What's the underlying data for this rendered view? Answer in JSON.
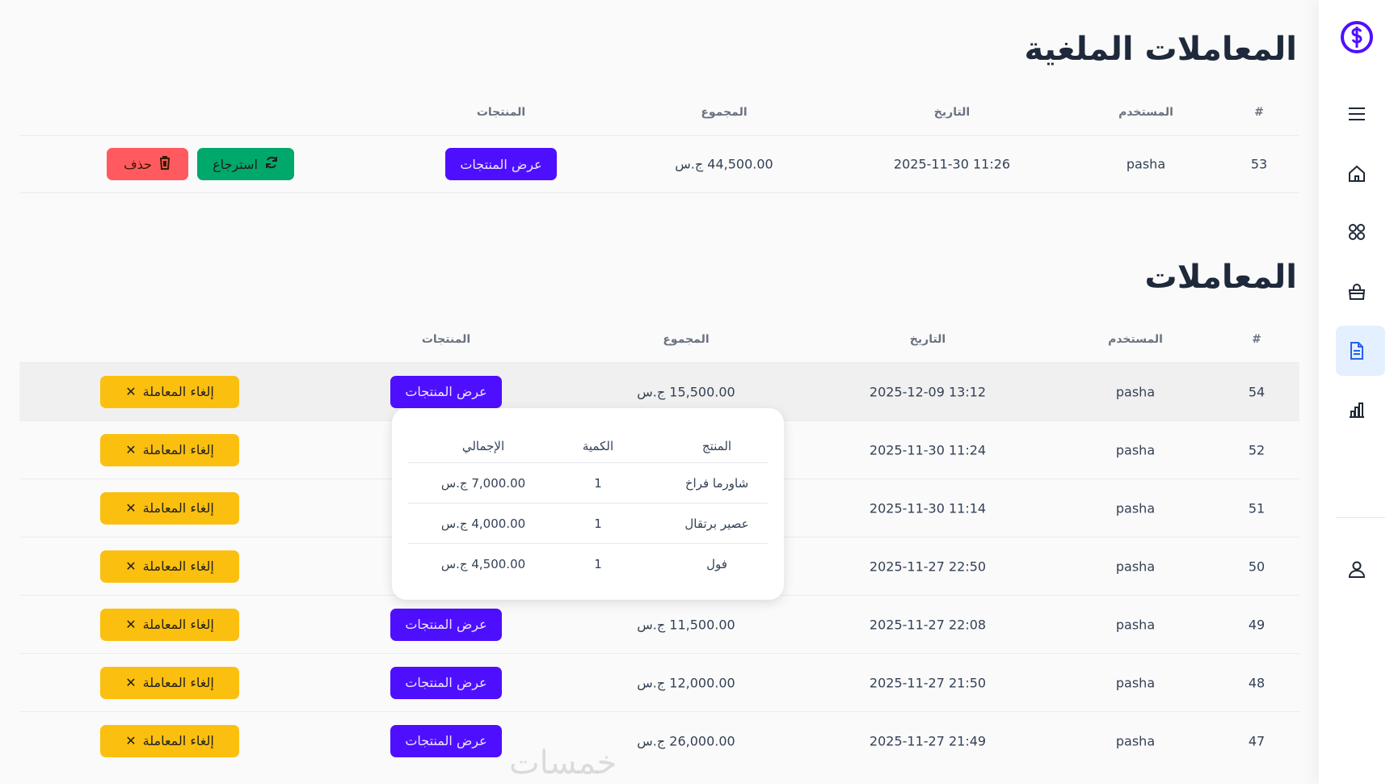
{
  "sidebar": {
    "logo_icon": "dollar-circle-icon",
    "brand_color": "#4f0fff",
    "items": [
      {
        "icon": "menu-icon"
      },
      {
        "icon": "home-icon"
      },
      {
        "icon": "grid-icon"
      },
      {
        "icon": "shopping-bag-icon"
      },
      {
        "icon": "document-icon",
        "active": true
      },
      {
        "icon": "bar-chart-icon"
      },
      {
        "icon": "user-icon"
      }
    ]
  },
  "cancelled": {
    "title": "المعاملات الملغية",
    "headers": [
      "#",
      "المستخدم",
      "التاريخ",
      "المجموع",
      "المنتجات"
    ],
    "rows": [
      {
        "id": "53",
        "user": "pasha",
        "date": "2025-11-30 11:26",
        "total": "44,500.00 ج.س",
        "products_btn": "عرض المنتجات",
        "restore": "استرجاع",
        "delete": "حذف"
      }
    ]
  },
  "transactions": {
    "title": "المعاملات",
    "headers": [
      "#",
      "المستخدم",
      "التاريخ",
      "المجموع",
      "المنتجات"
    ],
    "cancel_label": "إلغاء المعاملة",
    "products_btn": "عرض المنتجات",
    "rows": [
      {
        "id": "54",
        "user": "pasha",
        "date": "2025-12-09 13:12",
        "total": "15,500.00 ج.س"
      },
      {
        "id": "52",
        "user": "pasha",
        "date": "2025-11-30 11:24",
        "total": ""
      },
      {
        "id": "51",
        "user": "pasha",
        "date": "2025-11-30 11:14",
        "total": ""
      },
      {
        "id": "50",
        "user": "pasha",
        "date": "2025-11-27 22:50",
        "total": ""
      },
      {
        "id": "49",
        "user": "pasha",
        "date": "2025-11-27 22:08",
        "total": "11,500.00 ج.س"
      },
      {
        "id": "48",
        "user": "pasha",
        "date": "2025-11-27 21:50",
        "total": "12,000.00 ج.س"
      },
      {
        "id": "47",
        "user": "pasha",
        "date": "2025-11-27 21:49",
        "total": "26,000.00 ج.س"
      }
    ]
  },
  "popup": {
    "headers": [
      "المنتج",
      "الكمية",
      "الإجمالي"
    ],
    "rows": [
      {
        "product": "شاورما فراخ",
        "qty": "1",
        "total": "7,000.00 ج.س"
      },
      {
        "product": "عصير برتقال",
        "qty": "1",
        "total": "4,000.00 ج.س"
      },
      {
        "product": "فول",
        "qty": "1",
        "total": "4,500.00 ج.س"
      }
    ]
  },
  "watermark": "خمسات"
}
